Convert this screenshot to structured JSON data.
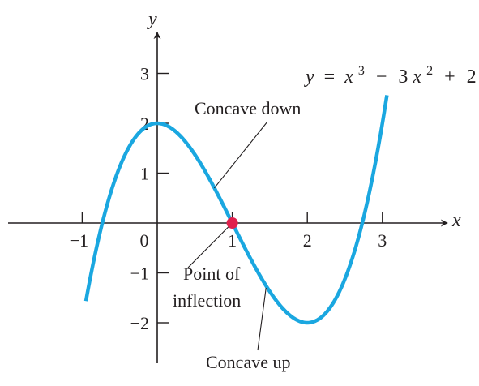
{
  "chart_data": {
    "type": "line",
    "title": "",
    "xlabel": "x",
    "ylabel": "y",
    "xlim": [
      -1.0,
      3.1
    ],
    "ylim": [
      -2.7,
      3.8
    ],
    "x_ticks": [
      -1,
      0,
      1,
      2,
      3
    ],
    "y_ticks": [
      -2,
      -1,
      1,
      2,
      3
    ],
    "x_tick_labels": [
      "−1",
      "0",
      "1",
      "2",
      "3"
    ],
    "y_tick_labels": [
      "−2",
      "−1",
      "1",
      "2",
      "3"
    ],
    "grid": false,
    "legend": "none",
    "curve_color": "#1aa7e0",
    "point_color": "#e0214d",
    "series": [
      {
        "equation": "y = x^3 − 3x^2 + 2",
        "x_range": [
          -0.95,
          3.06
        ],
        "x": [
          -0.95,
          -0.5,
          0,
          0.5,
          1,
          1.5,
          2,
          2.5,
          3,
          3.06
        ],
        "y": [
          -1.56,
          1.13,
          2,
          1.38,
          0,
          -1.38,
          -2,
          -1.13,
          2,
          2.56
        ]
      }
    ],
    "points": [
      {
        "x": 1,
        "y": 0
      }
    ],
    "annotations": [
      {
        "text": "Concave down",
        "target_x": 0.76,
        "target_y": 0.7
      },
      {
        "lines": [
          "Point of",
          "inflection"
        ],
        "target_x": 1,
        "target_y": 0
      },
      {
        "text": "Concave up",
        "target_x": 1.45,
        "target_y": -1.3
      }
    ],
    "equation_label": {
      "y": "y",
      "eq": "=",
      "x1": "x",
      "p1": "3",
      "minus": "−",
      "coef": "3",
      "x2": "x",
      "p2": "2",
      "plus": "+",
      "const": "2"
    }
  }
}
